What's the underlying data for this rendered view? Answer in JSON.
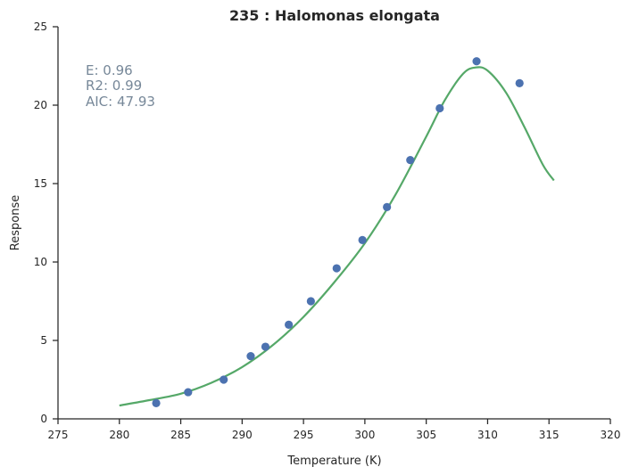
{
  "chart_data": {
    "type": "scatter",
    "title": "235 : Halomonas elongata",
    "xlabel": "Temperature (K)",
    "ylabel": "Response",
    "xlim": [
      275,
      320
    ],
    "ylim": [
      0,
      25
    ],
    "xticks": [
      275,
      280,
      285,
      290,
      295,
      300,
      305,
      310,
      315,
      320
    ],
    "yticks": [
      0,
      5,
      10,
      15,
      20,
      25
    ],
    "grid": false,
    "annotation": {
      "lines": [
        "E:  0.96",
        "R2:  0.99",
        "AIC: 47.93"
      ]
    },
    "series": [
      {
        "kind": "points",
        "color": "#4c72b0",
        "x": [
          283.0,
          285.6,
          288.5,
          290.7,
          291.9,
          293.8,
          295.6,
          297.7,
          299.8,
          301.8,
          303.7,
          306.1,
          309.1,
          312.6
        ],
        "y": [
          1.0,
          1.7,
          2.5,
          4.0,
          4.6,
          6.0,
          7.5,
          9.6,
          11.4,
          13.5,
          16.5,
          19.8,
          22.8,
          21.4
        ]
      },
      {
        "kind": "line",
        "color": "#55a868",
        "x": [
          280.0,
          282.5,
          285.0,
          287.5,
          290.0,
          292.5,
          295.0,
          297.5,
          300.0,
          302.5,
          305.0,
          306.5,
          308.0,
          309.0,
          310.0,
          311.5,
          313.0,
          314.5,
          315.4
        ],
        "y": [
          0.85,
          1.2,
          1.6,
          2.3,
          3.3,
          4.7,
          6.5,
          8.7,
          11.2,
          14.3,
          18.0,
          20.3,
          22.0,
          22.4,
          22.2,
          20.8,
          18.6,
          16.2,
          15.2
        ]
      }
    ]
  }
}
